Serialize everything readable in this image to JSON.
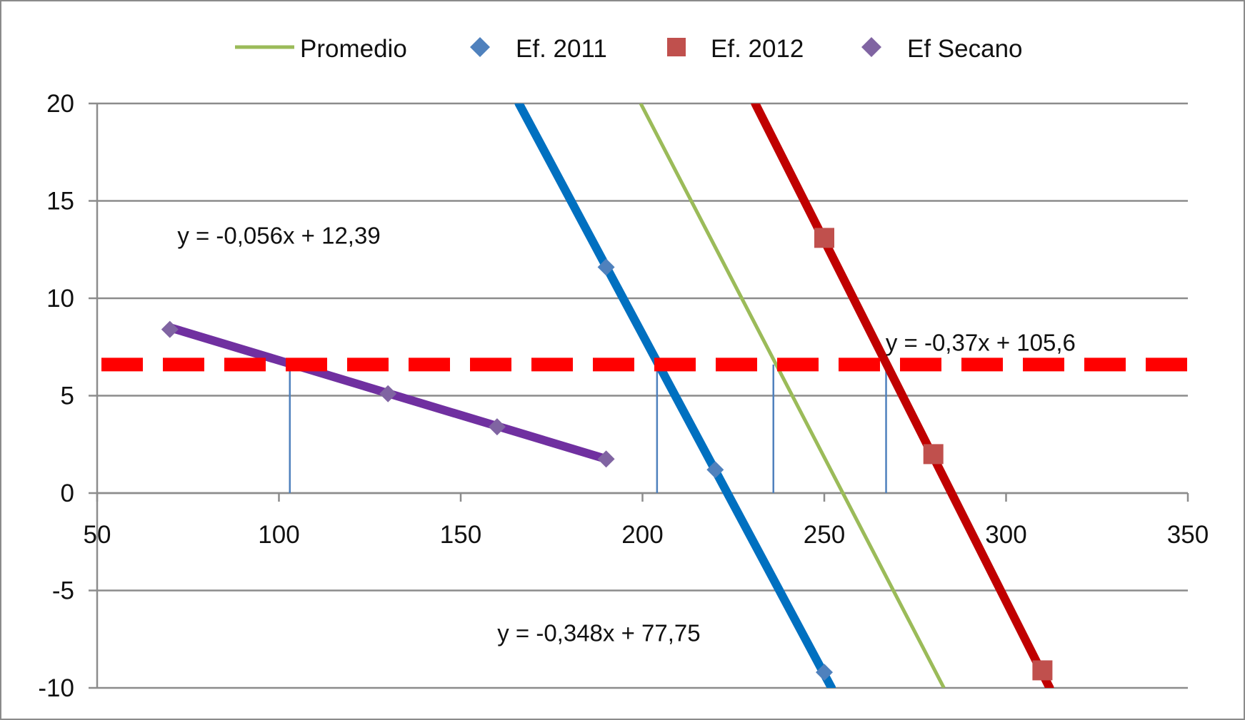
{
  "chart_data": {
    "type": "scatter",
    "title": "",
    "xlabel": "",
    "ylabel": "",
    "xlim": [
      50,
      350
    ],
    "ylim": [
      -10,
      20
    ],
    "x_ticks": [
      50,
      100,
      150,
      200,
      250,
      300,
      350
    ],
    "y_ticks": [
      -10,
      -5,
      0,
      5,
      10,
      15,
      20
    ],
    "x_tick_labels": [
      "50",
      "100",
      "150",
      "200",
      "250",
      "300",
      "350"
    ],
    "y_tick_labels": [
      "-10",
      "-5",
      "0",
      "5",
      "10",
      "15",
      "20"
    ],
    "grid": "horizontal",
    "legend": {
      "position": "top",
      "entries": [
        "Promedio",
        "Ef. 2011",
        "Ef. 2012",
        "Ef Secano"
      ]
    },
    "series": [
      {
        "name": "Promedio",
        "style": "line",
        "color": "#9bbb59",
        "points": [
          [
            199.5,
            20
          ],
          [
            282.9,
            -10
          ]
        ]
      },
      {
        "name": "Ef. 2011",
        "style": "markers+trendline",
        "marker": "diamond",
        "color": "#4f81bd",
        "trend_color": "#0070c0",
        "points": [
          [
            190,
            11.6
          ],
          [
            220,
            1.2
          ],
          [
            250,
            -9.2
          ]
        ],
        "trendline": [
          [
            166,
            20
          ],
          [
            252,
            -10
          ]
        ]
      },
      {
        "name": "Ef. 2012",
        "style": "markers+trendline",
        "marker": "square",
        "color": "#c0504d",
        "trend_color": "#c00000",
        "points": [
          [
            250,
            13.1
          ],
          [
            280,
            2.0
          ],
          [
            310,
            -9.1
          ]
        ],
        "trendline": [
          [
            231,
            20
          ],
          [
            312,
            -10
          ]
        ]
      },
      {
        "name": "Ef Secano",
        "style": "markers+trendline",
        "marker": "diamond",
        "color": "#8064a2",
        "trend_color": "#7030a0",
        "points": [
          [
            70,
            8.4
          ],
          [
            130,
            5.1
          ],
          [
            160,
            3.4
          ],
          [
            190,
            1.75
          ]
        ],
        "trendline": [
          [
            70,
            8.5
          ],
          [
            190,
            1.75
          ]
        ]
      }
    ],
    "threshold": {
      "y": 6.6,
      "color": "#ff0000",
      "style": "dashed"
    },
    "drop_lines_x": [
      103,
      204,
      236,
      267
    ],
    "annotations": [
      {
        "text": "y = -0,056x + 12,39",
        "x": 100,
        "y": 12.8
      },
      {
        "text": "y = -0,37x + 105,6",
        "x": 293,
        "y": 7.3
      },
      {
        "text": "y = -0,348x + 77,75",
        "x": 188,
        "y": -7.6
      }
    ]
  }
}
